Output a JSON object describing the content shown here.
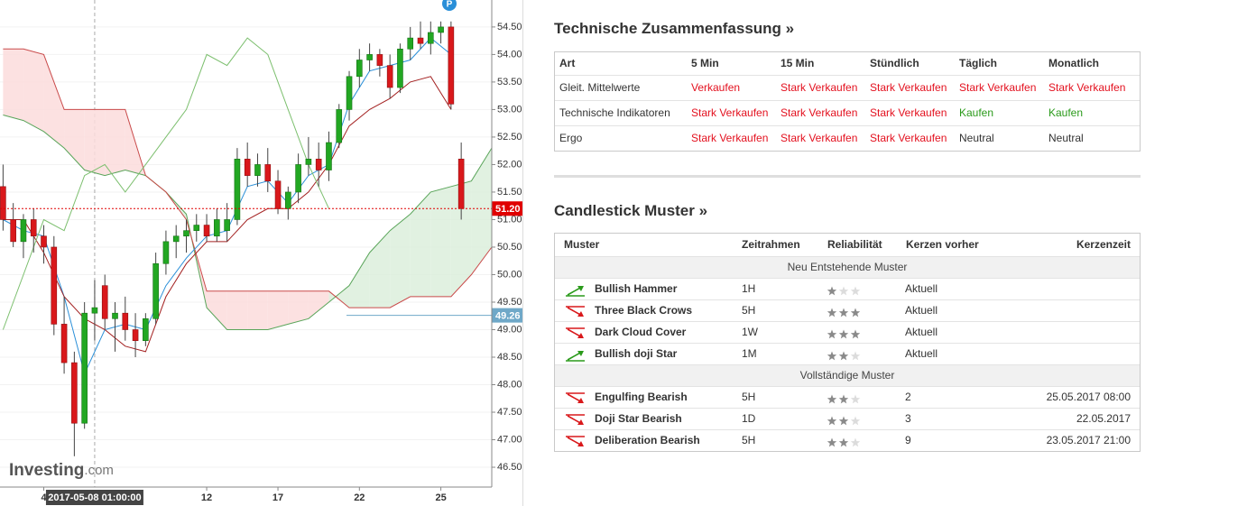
{
  "chart_data": {
    "type": "candlestick",
    "ylim": [
      46.14,
      54.99
    ],
    "xlim": [
      -0.3,
      48
    ],
    "grid": true,
    "yticks": [
      {
        "value": 46.5,
        "label": "46.50"
      },
      {
        "value": 47,
        "label": "47.00"
      },
      {
        "value": 47.5,
        "label": "47.50"
      },
      {
        "value": 48,
        "label": "48.00"
      },
      {
        "value": 48.5,
        "label": "48.50"
      },
      {
        "value": 49,
        "label": "49.00"
      },
      {
        "value": 49.5,
        "label": "49.50"
      },
      {
        "value": 50,
        "label": "50.00"
      },
      {
        "value": 50.5,
        "label": "50.50"
      },
      {
        "value": 51,
        "label": "51.00"
      },
      {
        "value": 51.5,
        "label": "51.50"
      },
      {
        "value": 52,
        "label": "52.00"
      },
      {
        "value": 52.5,
        "label": "52.50"
      },
      {
        "value": 53,
        "label": "53.00"
      },
      {
        "value": 53.5,
        "label": "53.50"
      },
      {
        "value": 54,
        "label": "54.00"
      },
      {
        "value": 54.5,
        "label": "54.50"
      }
    ],
    "categories": [
      null,
      null,
      null,
      null,
      "4",
      null,
      null,
      null,
      null,
      "2017-05-08 01:00:00",
      null,
      null,
      null,
      null,
      null,
      null,
      null,
      null,
      null,
      null,
      "12",
      null,
      null,
      null,
      null,
      null,
      null,
      "17",
      null,
      null,
      null,
      null,
      null,
      null,
      null,
      "22",
      null,
      null,
      null,
      null,
      null,
      null,
      null,
      "25",
      null,
      null
    ],
    "crosshair_index": 9,
    "up_color": "#22a722",
    "down_color": "#d9181b",
    "candles": [
      [
        51.6,
        52.0,
        50.8,
        51.0
      ],
      [
        51.0,
        51.3,
        50.5,
        50.6
      ],
      [
        50.6,
        51.1,
        50.3,
        51.0
      ],
      [
        51.0,
        51.2,
        50.4,
        50.7
      ],
      [
        50.7,
        50.9,
        50.2,
        50.5
      ],
      [
        50.5,
        50.7,
        48.9,
        49.1
      ],
      [
        49.1,
        49.6,
        48.2,
        48.4
      ],
      [
        48.4,
        48.6,
        46.7,
        47.3
      ],
      [
        47.3,
        49.5,
        47.2,
        49.3
      ],
      [
        49.3,
        49.9,
        48.8,
        49.4
      ],
      [
        49.8,
        50.0,
        49.0,
        49.2
      ],
      [
        49.2,
        49.5,
        48.6,
        49.3
      ],
      [
        49.3,
        49.6,
        48.8,
        49.0
      ],
      [
        49.0,
        49.3,
        48.5,
        48.8
      ],
      [
        48.8,
        49.3,
        48.7,
        49.2
      ],
      [
        49.2,
        50.4,
        49.1,
        50.2
      ],
      [
        50.2,
        50.8,
        50.0,
        50.6
      ],
      [
        50.6,
        50.9,
        50.3,
        50.7
      ],
      [
        50.7,
        51.0,
        50.4,
        50.8
      ],
      [
        50.8,
        51.1,
        50.6,
        50.9
      ],
      [
        50.9,
        51.1,
        50.6,
        50.7
      ],
      [
        50.7,
        51.2,
        50.6,
        51.0
      ],
      [
        50.8,
        51.3,
        50.6,
        51.0
      ],
      [
        51.0,
        52.3,
        50.9,
        52.1
      ],
      [
        52.1,
        52.4,
        51.6,
        51.8
      ],
      [
        51.8,
        52.2,
        51.6,
        52.0
      ],
      [
        52.0,
        52.3,
        51.5,
        51.7
      ],
      [
        51.7,
        51.9,
        51.1,
        51.2
      ],
      [
        51.2,
        51.6,
        51.0,
        51.5
      ],
      [
        51.5,
        52.2,
        51.3,
        52.0
      ],
      [
        52.0,
        52.5,
        51.8,
        52.1
      ],
      [
        52.1,
        52.4,
        51.6,
        51.9
      ],
      [
        51.9,
        52.6,
        51.7,
        52.4
      ],
      [
        52.4,
        53.1,
        52.3,
        53.0
      ],
      [
        53.0,
        53.7,
        52.8,
        53.6
      ],
      [
        53.6,
        54.1,
        53.4,
        53.9
      ],
      [
        53.9,
        54.2,
        53.7,
        54.0
      ],
      [
        54.0,
        54.1,
        53.6,
        53.8
      ],
      [
        53.8,
        54.0,
        53.2,
        53.4
      ],
      [
        53.4,
        54.2,
        53.3,
        54.1
      ],
      [
        54.1,
        54.5,
        53.9,
        54.3
      ],
      [
        54.3,
        54.6,
        54.1,
        54.2
      ],
      [
        54.2,
        54.6,
        54.0,
        54.4
      ],
      [
        54.4,
        54.6,
        54.2,
        54.5
      ],
      [
        54.5,
        54.6,
        53.0,
        53.1
      ],
      [
        52.1,
        52.4,
        51.0,
        51.2
      ]
    ],
    "cloud": {
      "x": [
        0,
        2,
        4,
        6,
        8,
        10,
        12,
        14,
        16,
        18,
        20,
        22,
        24,
        26,
        28,
        30,
        32,
        34,
        36,
        38,
        40,
        42,
        44,
        46,
        48
      ],
      "span_a": [
        52.9,
        52.8,
        52.6,
        52.3,
        51.9,
        51.8,
        51.9,
        51.8,
        51.5,
        51.1,
        49.4,
        49.0,
        49.0,
        49.0,
        49.1,
        49.2,
        49.5,
        49.8,
        50.4,
        50.8,
        51.1,
        51.5,
        51.6,
        51.7,
        52.3
      ],
      "span_b": [
        54.1,
        54.1,
        54.0,
        53.0,
        53.0,
        53.0,
        53.0,
        51.8,
        51.5,
        51.0,
        49.7,
        49.7,
        49.7,
        49.7,
        49.7,
        49.7,
        49.7,
        49.4,
        49.4,
        49.4,
        49.6,
        49.6,
        49.6,
        50.0,
        50.5
      ],
      "fill_colors": [
        "#dcefdc",
        "#fcdcdc"
      ],
      "line_colors": [
        "#5aa55a",
        "#c94a4a"
      ]
    },
    "lines": {
      "x": [
        0,
        2,
        4,
        6,
        8,
        10,
        12,
        14,
        16,
        18,
        20,
        22,
        24,
        26,
        28,
        30,
        32,
        34,
        36,
        38,
        40,
        42,
        44,
        46,
        48
      ],
      "series": [
        {
          "color": "#2a8fd8",
          "values": [
            51.0,
            50.8,
            50.7,
            49.6,
            48.2,
            49.0,
            49.1,
            49.0,
            49.8,
            50.3,
            50.7,
            50.8,
            51.6,
            51.7,
            51.3,
            51.8,
            52.0,
            53.1,
            53.7,
            53.8,
            53.9,
            54.3,
            54.0,
            null,
            null
          ]
        },
        {
          "color": "#a32020",
          "values": [
            51.0,
            51.0,
            50.4,
            49.6,
            49.2,
            49.0,
            48.7,
            48.6,
            49.6,
            50.2,
            50.6,
            50.6,
            51.0,
            51.2,
            51.2,
            51.5,
            52.0,
            52.7,
            53.0,
            53.2,
            53.5,
            53.6,
            53.0,
            null,
            null
          ]
        },
        {
          "color": "#7cbf6e",
          "values": [
            49.0,
            50.0,
            51.0,
            50.8,
            51.8,
            52.0,
            51.5,
            52.0,
            52.5,
            53.0,
            54.0,
            53.8,
            54.3,
            54.0,
            53.0,
            52.0,
            51.2,
            null,
            null,
            null,
            null,
            null,
            null,
            null,
            null
          ]
        }
      ]
    },
    "price_lines": [
      {
        "value": 51.2,
        "label": "51.20",
        "color": "#e00000",
        "dashed": true
      },
      {
        "value": 49.26,
        "label": "49.26",
        "color": "#6fa8c8",
        "dashed": false
      }
    ],
    "marker": "P",
    "logo": [
      "Investing",
      ".com"
    ]
  },
  "summary": {
    "title": "Technische Zusammenfassung »",
    "header": [
      "Art",
      "5 Min",
      "15 Min",
      "Stündlich",
      "Täglich",
      "Monatlich"
    ],
    "rows": [
      {
        "label": "Gleit. Mittelwerte",
        "cells": [
          "Verkaufen",
          "Stark Verkaufen",
          "Stark Verkaufen",
          "Stark Verkaufen",
          "Stark Verkaufen"
        ],
        "colors": [
          "#e3101e",
          "#e3101e",
          "#e3101e",
          "#e3101e",
          "#e3101e"
        ]
      },
      {
        "label": "Technische Indikatoren",
        "cells": [
          "Stark Verkaufen",
          "Stark Verkaufen",
          "Stark Verkaufen",
          "Kaufen",
          "Kaufen"
        ],
        "colors": [
          "#e3101e",
          "#e3101e",
          "#e3101e",
          "#2a9a1a",
          "#2a9a1a"
        ]
      },
      {
        "label": "Ergo",
        "cells": [
          "Stark Verkaufen",
          "Stark Verkaufen",
          "Stark Verkaufen",
          "Neutral",
          "Neutral"
        ],
        "colors": [
          "#e3101e",
          "#e3101e",
          "#e3101e",
          "#333333",
          "#333333"
        ]
      }
    ]
  },
  "patterns": {
    "title": "Candlestick Muster »",
    "header": [
      "Muster",
      "Zeitrahmen",
      "Reliabilität",
      "Kerzen vorher",
      "Kerzenzeit"
    ],
    "groups": [
      {
        "name": "Neu Entstehende Muster",
        "rows": [
          {
            "name": "Bullish Hammer",
            "timeframe": "1H",
            "reliability": 1,
            "ago": "Aktuell",
            "trend": "up"
          },
          {
            "name": "Three Black Crows",
            "timeframe": "5H",
            "reliability": 3,
            "ago": "Aktuell",
            "trend": "down"
          },
          {
            "name": "Dark Cloud Cover",
            "timeframe": "1W",
            "reliability": 3,
            "ago": "Aktuell",
            "trend": "down"
          },
          {
            "name": "Bullish doji Star",
            "timeframe": "1M",
            "reliability": 2,
            "ago": "Aktuell",
            "trend": "up"
          }
        ]
      },
      {
        "name": "Vollständige Muster",
        "rows": [
          {
            "name": "Engulfing Bearish",
            "timeframe": "5H",
            "reliability": 2,
            "ago": 2,
            "time": "25.05.2017 08:00",
            "trend": "down"
          },
          {
            "name": "Doji Star Bearish",
            "timeframe": "1D",
            "reliability": 2,
            "ago": 3,
            "time": "22.05.2017",
            "trend": "down"
          },
          {
            "name": "Deliberation Bearish",
            "timeframe": "5H",
            "reliability": 2,
            "ago": 9,
            "time": "23.05.2017 21:00",
            "trend": "down"
          }
        ]
      }
    ]
  }
}
